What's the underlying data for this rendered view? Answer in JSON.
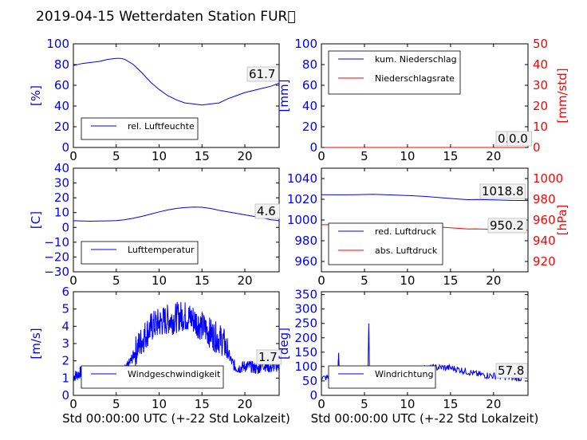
{
  "title": "2019-04-15 Wetterdaten Station FUR\u0000",
  "colors": {
    "left_axis": "#0000ff",
    "right_axis": "#ff0000",
    "wind_light": "#8080ff"
  },
  "chart_data": [
    {
      "type": "line",
      "id": "humidity",
      "ylabel": "[%]",
      "ylim": [
        0,
        100
      ],
      "yticks": [
        "0",
        "20",
        "40",
        "60",
        "80",
        "100"
      ],
      "xlim": [
        0,
        24
      ],
      "xticks": [
        "0",
        "5",
        "10",
        "15",
        "20"
      ],
      "legend_placement": "lower-left",
      "series": [
        {
          "name": "rel. Luftfeuchte",
          "color": "#0000ff",
          "x": [
            0,
            1,
            2,
            3,
            4,
            5,
            5.5,
            6,
            7,
            8,
            9,
            10,
            11,
            12,
            13,
            14,
            15,
            16,
            17,
            18,
            19,
            20,
            21,
            22,
            23,
            24
          ],
          "y": [
            79,
            81,
            82,
            83,
            85,
            86,
            86,
            85,
            80,
            72,
            63,
            56,
            50,
            46,
            43,
            42,
            41,
            42,
            43,
            47,
            50,
            53,
            55,
            57,
            59,
            62
          ]
        }
      ],
      "current_value": "61.7"
    },
    {
      "type": "line",
      "id": "precipitation",
      "ylabel": "[mm]",
      "ylim": [
        0,
        100
      ],
      "yticks": [
        "0",
        "20",
        "40",
        "60",
        "80",
        "100"
      ],
      "y2label": "[mm/std]",
      "y2lim": [
        0,
        50
      ],
      "y2ticks": [
        "0",
        "10",
        "20",
        "30",
        "40",
        "50"
      ],
      "xlim": [
        0,
        24
      ],
      "xticks": [
        "0",
        "5",
        "10",
        "15",
        "20"
      ],
      "legend_placement": "top-left",
      "series": [
        {
          "name": "kum. Niederschlag",
          "color": "#0000ff",
          "axis": "left",
          "x": [
            0,
            24
          ],
          "y": [
            0,
            0
          ]
        },
        {
          "name": "Niederschlagsrate",
          "color": "#ff0000",
          "axis": "right",
          "x": [
            0,
            24
          ],
          "y": [
            0,
            0
          ]
        }
      ],
      "current_values": [
        "0.0",
        "0.0"
      ]
    },
    {
      "type": "line",
      "id": "temperature",
      "ylabel": "[C]",
      "ylim": [
        -30,
        40
      ],
      "yticks": [
        "−30",
        "−20",
        "−10",
        "0",
        "10",
        "20",
        "30",
        "40"
      ],
      "xlim": [
        0,
        24
      ],
      "xticks": [
        "0",
        "5",
        "10",
        "15",
        "20"
      ],
      "legend_placement": "lower-left",
      "series": [
        {
          "name": "Lufttemperatur",
          "color": "#0000ff",
          "x": [
            0,
            1,
            2,
            3,
            4,
            5,
            6,
            7,
            8,
            9,
            10,
            11,
            12,
            13,
            14,
            15,
            16,
            17,
            18,
            19,
            20,
            21,
            22,
            23,
            24
          ],
          "y": [
            4.5,
            4.3,
            4.2,
            4.3,
            4.4,
            4.6,
            5.2,
            6.2,
            7.5,
            9,
            10.5,
            11.8,
            12.8,
            13.4,
            13.8,
            13.6,
            12.8,
            11.5,
            10.5,
            9.5,
            8.5,
            7.5,
            6.5,
            5.2,
            4.6
          ]
        }
      ],
      "current_value": "4.6"
    },
    {
      "type": "line",
      "id": "pressure",
      "ylim": [
        950,
        1050
      ],
      "yticks": [
        "960",
        "980",
        "1000",
        "1020",
        "1040"
      ],
      "y2label": "[hPa]",
      "y2lim": [
        910,
        1010
      ],
      "y2ticks": [
        "920",
        "940",
        "960",
        "980",
        "1000"
      ],
      "xlim": [
        0,
        24
      ],
      "xticks": [
        "0",
        "5",
        "10",
        "15",
        "20"
      ],
      "legend_placement": "lower-left",
      "series": [
        {
          "name": "red. Luftdruck",
          "color": "#0000ff",
          "axis": "left",
          "x": [
            0,
            2,
            4,
            6,
            8,
            10,
            12,
            14,
            16,
            17,
            18,
            20,
            22,
            24
          ],
          "y": [
            1024.5,
            1024.3,
            1024.5,
            1024.8,
            1024.2,
            1023.6,
            1022.8,
            1021.5,
            1020.2,
            1019.6,
            1019.8,
            1019.4,
            1018.9,
            1018.8
          ]
        },
        {
          "name": "abs. Luftdruck",
          "color": "#ff0000",
          "axis": "right",
          "x": [
            0,
            2,
            4,
            6,
            8,
            10,
            12,
            14,
            16,
            17,
            18,
            20,
            22,
            24
          ],
          "y": [
            955.5,
            955.4,
            955.6,
            956,
            955.5,
            955,
            954.3,
            953.1,
            951.9,
            951.3,
            951.5,
            951,
            950.4,
            950.2
          ]
        }
      ],
      "current_values": [
        "1018.8",
        "950.2"
      ]
    },
    {
      "type": "line",
      "id": "wind_speed",
      "ylabel": "[m/s]",
      "ylim": [
        0,
        6
      ],
      "yticks": [
        "0",
        "1",
        "2",
        "3",
        "4",
        "5",
        "6"
      ],
      "xlim": [
        0,
        24
      ],
      "xticks": [
        "0",
        "5",
        "10",
        "15",
        "20"
      ],
      "xlabel": "Std 00:00:00 UTC (+-22 Std Lokalzeit)",
      "legend_placement": "lower-left",
      "series": [
        {
          "name": "Windgeschwindigkeit",
          "color": "#0000ff",
          "x": [
            0,
            0.5,
            1,
            1.5,
            2,
            2.5,
            3,
            3.5,
            4,
            4.5,
            5,
            5.5,
            6,
            6.5,
            7,
            7.5,
            8,
            8.5,
            9,
            9.5,
            10,
            10.5,
            11,
            11.5,
            12,
            12.5,
            13,
            13.5,
            14,
            14.5,
            15,
            15.5,
            16,
            16.5,
            17,
            17.5,
            18,
            18.5,
            19,
            19.5,
            20,
            20.5,
            21,
            21.5,
            22,
            22.5,
            23,
            23.5,
            24
          ],
          "y": [
            1.1,
            1.2,
            1.4,
            1.0,
            1.3,
            1.1,
            1.0,
            0.9,
            1.2,
            1.3,
            1.1,
            1.2,
            1.4,
            1.8,
            2.3,
            2.8,
            3.2,
            3.6,
            3.9,
            4.1,
            4.2,
            4.3,
            4.4,
            4.4,
            4.5,
            4.6,
            4.6,
            4.5,
            4.4,
            4.2,
            4.0,
            3.8,
            3.6,
            3.4,
            3.3,
            3.1,
            2.5,
            1.9,
            1.6,
            1.6,
            1.7,
            1.7,
            1.6,
            1.5,
            1.8,
            1.7,
            1.6,
            1.7,
            1.7
          ]
        }
      ],
      "current_value": "1.7"
    },
    {
      "type": "line",
      "id": "wind_direction",
      "ylabel": "[deg]",
      "ylim": [
        0,
        360
      ],
      "yticks": [
        "0",
        "50",
        "100",
        "150",
        "200",
        "250",
        "300",
        "350"
      ],
      "xlim": [
        0,
        24
      ],
      "xticks": [
        "0",
        "5",
        "10",
        "15",
        "20"
      ],
      "xlabel": "Std 00:00:00 UTC (+-22 Std Lokalzeit)",
      "legend_placement": "lower-left",
      "series": [
        {
          "name": "Windrichtung",
          "color": "#0000ff",
          "x": [
            0,
            1,
            1.9,
            2,
            2.1,
            3,
            4,
            5,
            5.4,
            5.5,
            5.6,
            6,
            7,
            8,
            9,
            10,
            11,
            12,
            13,
            14,
            15,
            16,
            17,
            18,
            19,
            20,
            21,
            22,
            23,
            24
          ],
          "y": [
            60,
            62,
            65,
            148,
            62,
            60,
            63,
            66,
            65,
            250,
            70,
            72,
            78,
            82,
            86,
            90,
            92,
            94,
            96,
            97,
            95,
            90,
            82,
            74,
            70,
            68,
            65,
            62,
            60,
            58
          ]
        }
      ],
      "current_value": "57.8"
    }
  ]
}
